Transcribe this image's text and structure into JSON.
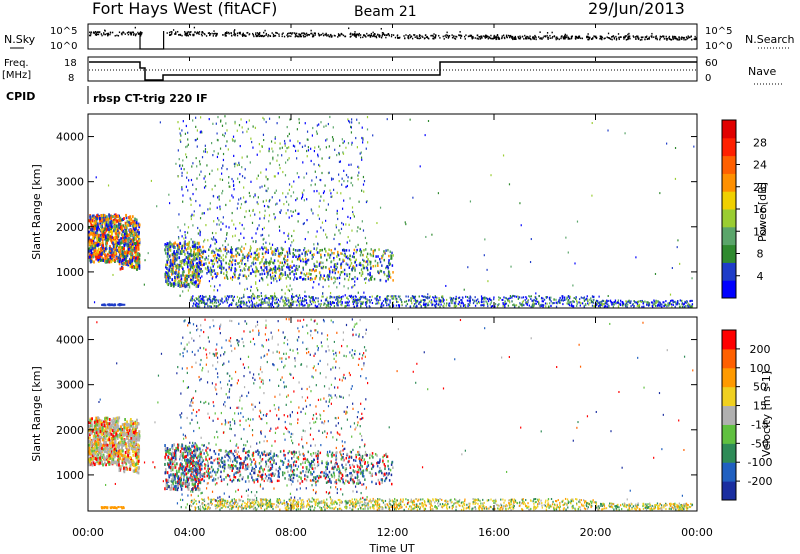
{
  "header": {
    "station": "Fort Hays West (fitACF)",
    "beam": "Beam 21",
    "date": "29/Jun/2013"
  },
  "noise_panel": {
    "left_label": "N.Sky",
    "right_label": "N.Search",
    "ticks": [
      "10^5",
      "10^0"
    ]
  },
  "freq_panel": {
    "left_label_line1": "Freq.",
    "left_label_line2": "[MHz]",
    "right_label": "Nave",
    "left_ticks": [
      "18",
      "8"
    ],
    "right_ticks": [
      "60",
      "0"
    ]
  },
  "cpid": {
    "label": "CPID",
    "value": "rbsp CT-trig 220 IF"
  },
  "chart_data": [
    {
      "type": "heatmap",
      "name": "power",
      "ylabel": "Slant Range [km]",
      "ylim": [
        200,
        4500
      ],
      "yticks": [
        "1000",
        "2000",
        "3000",
        "4000"
      ],
      "colorbar_label": "Power [dB]",
      "colorbar_ticks": [
        "4",
        "8",
        "12",
        "16",
        "20",
        "24",
        "28"
      ],
      "colorbar_colors": [
        "#0000ff",
        "#1e3cc8",
        "#2f8a2f",
        "#5aa56a",
        "#9acd32",
        "#f0d000",
        "#ff9000",
        "#ff6000",
        "#ff2000",
        "#e00000"
      ]
    },
    {
      "type": "heatmap",
      "name": "velocity",
      "ylabel": "Slant Range [km]",
      "ylim": [
        200,
        4500
      ],
      "yticks": [
        "1000",
        "2000",
        "3000",
        "4000"
      ],
      "colorbar_label": "Velocity [m s-1]",
      "colorbar_ticks": [
        "200",
        "100",
        "50",
        "15",
        "-15",
        "-50",
        "-100",
        "-200"
      ],
      "colorbar_colors": [
        "#1a2ea0",
        "#2060c0",
        "#2e8b57",
        "#60c040",
        "#b0b0b0",
        "#f0d020",
        "#ff9a00",
        "#ff6000",
        "#ff0000"
      ]
    }
  ],
  "x_axis": {
    "label": "Time UT",
    "ticks": [
      "00:00",
      "04:00",
      "08:00",
      "12:00",
      "16:00",
      "20:00",
      "00:00"
    ]
  }
}
